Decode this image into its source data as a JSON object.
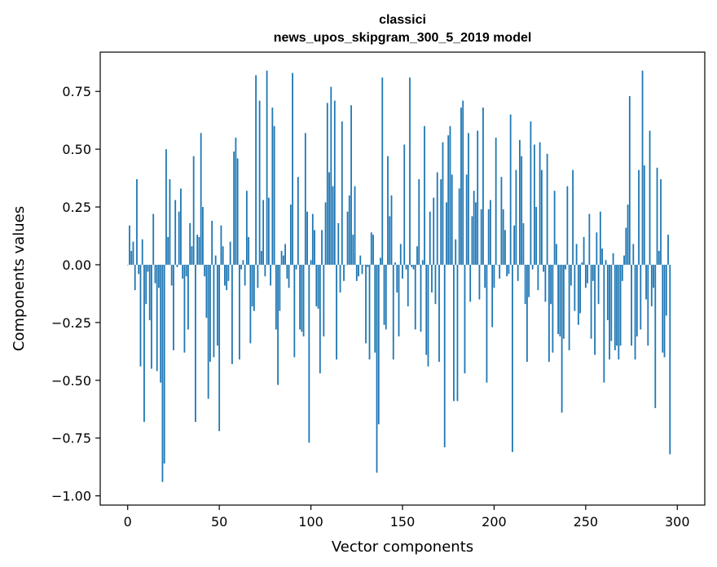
{
  "chart_data": {
    "type": "bar",
    "title": "classici",
    "subtitle": "news_upos_skipgram_300_5_2019 model",
    "xlabel": "Vector components",
    "ylabel": "Components values",
    "xlim": [
      -15,
      315
    ],
    "ylim": [
      -1.04,
      0.92
    ],
    "xticks": [
      0,
      50,
      100,
      150,
      200,
      250,
      300
    ],
    "xtick_labels": [
      "0",
      "50",
      "100",
      "150",
      "200",
      "250",
      "300"
    ],
    "yticks": [
      -1.0,
      -0.75,
      -0.5,
      -0.25,
      0.0,
      0.25,
      0.5,
      0.75
    ],
    "ytick_labels": [
      "−1.00",
      "−0.75",
      "−0.50",
      "−0.25",
      "0.00",
      "0.25",
      "0.50",
      "0.75"
    ],
    "grid": false,
    "bar_color": "#1f77b4",
    "series": [
      {
        "values": [
          0.0,
          0.17,
          0.06,
          0.1,
          -0.11,
          0.37,
          -0.04,
          -0.44,
          0.11,
          -0.68,
          -0.17,
          -0.03,
          -0.24,
          -0.45,
          0.22,
          -0.08,
          -0.46,
          -0.1,
          -0.51,
          -0.94,
          -0.86,
          0.5,
          0.12,
          0.37,
          -0.09,
          -0.37,
          0.28,
          -0.01,
          0.23,
          0.33,
          -0.06,
          -0.38,
          -0.05,
          -0.28,
          0.18,
          0.08,
          0.47,
          -0.68,
          0.13,
          0.12,
          0.57,
          0.25,
          -0.05,
          -0.23,
          -0.58,
          -0.42,
          0.19,
          -0.4,
          0.04,
          -0.35,
          -0.72,
          0.17,
          0.08,
          -0.09,
          -0.11,
          -0.07,
          0.1,
          -0.43,
          0.49,
          0.55,
          0.46,
          -0.41,
          -0.02,
          0.02,
          -0.09,
          0.32,
          0.12,
          -0.34,
          -0.18,
          -0.2,
          0.82,
          -0.1,
          0.71,
          0.06,
          0.28,
          -0.05,
          0.84,
          0.29,
          -0.09,
          0.68,
          0.6,
          -0.28,
          -0.52,
          -0.2,
          0.06,
          0.04,
          0.09,
          -0.06,
          -0.1,
          0.26,
          0.83,
          -0.4,
          -0.02,
          0.38,
          -0.28,
          -0.29,
          -0.31,
          0.57,
          0.23,
          -0.77,
          0.02,
          0.22,
          0.15,
          -0.18,
          -0.19,
          -0.47,
          0.15,
          -0.31,
          0.27,
          0.7,
          0.4,
          0.77,
          0.34,
          0.71,
          -0.41,
          0.18,
          -0.12,
          0.62,
          -0.07,
          0.0,
          0.23,
          0.3,
          0.69,
          0.13,
          0.34,
          -0.07,
          -0.05,
          0.04,
          -0.04,
          0.0,
          -0.34,
          -0.01,
          -0.41,
          0.14,
          0.13,
          -0.38,
          -0.9,
          -0.69,
          0.03,
          0.81,
          -0.26,
          -0.28,
          0.47,
          0.21,
          0.3,
          -0.41,
          0.01,
          -0.12,
          -0.31,
          0.09,
          -0.06,
          0.52,
          -0.02,
          -0.18,
          0.81,
          -0.01,
          -0.02,
          -0.28,
          0.08,
          0.37,
          -0.29,
          0.02,
          0.6,
          -0.39,
          -0.44,
          0.23,
          -0.12,
          0.29,
          -0.17,
          0.4,
          -0.42,
          0.37,
          0.53,
          -0.79,
          0.27,
          0.56,
          0.6,
          0.39,
          -0.59,
          0.11,
          -0.59,
          0.33,
          0.68,
          0.71,
          -0.47,
          0.39,
          0.57,
          -0.16,
          0.21,
          0.32,
          0.27,
          0.58,
          -0.15,
          0.24,
          0.68,
          -0.1,
          -0.51,
          0.24,
          0.28,
          -0.27,
          -0.1,
          0.55,
          0.0,
          -0.06,
          0.38,
          0.24,
          0.15,
          -0.05,
          -0.04,
          0.65,
          -0.81,
          0.17,
          0.41,
          -0.07,
          0.54,
          0.47,
          0.18,
          -0.17,
          -0.42,
          -0.14,
          0.62,
          -0.02,
          0.52,
          0.25,
          -0.11,
          0.53,
          0.41,
          -0.03,
          -0.16,
          0.48,
          -0.42,
          -0.17,
          -0.38,
          0.32,
          0.09,
          -0.3,
          -0.31,
          -0.64,
          -0.32,
          -0.02,
          0.34,
          -0.37,
          -0.09,
          0.41,
          -0.2,
          0.09,
          -0.26,
          -0.21,
          0.01,
          0.12,
          -0.1,
          -0.08,
          0.22,
          -0.32,
          -0.07,
          -0.39,
          0.14,
          -0.17,
          0.23,
          0.07,
          -0.51,
          0.02,
          -0.24,
          -0.41,
          -0.33,
          0.05,
          -0.37,
          -0.35,
          -0.41,
          -0.35,
          -0.07,
          0.04,
          0.16,
          0.26,
          0.73,
          -0.35,
          0.09,
          -0.41,
          -0.31,
          0.41,
          -0.28,
          0.84,
          0.43,
          -0.15,
          -0.35,
          0.58,
          -0.18,
          -0.1,
          -0.62,
          0.42,
          0.06,
          0.37,
          -0.38,
          -0.4,
          -0.22,
          0.13,
          -0.82
        ]
      }
    ]
  }
}
